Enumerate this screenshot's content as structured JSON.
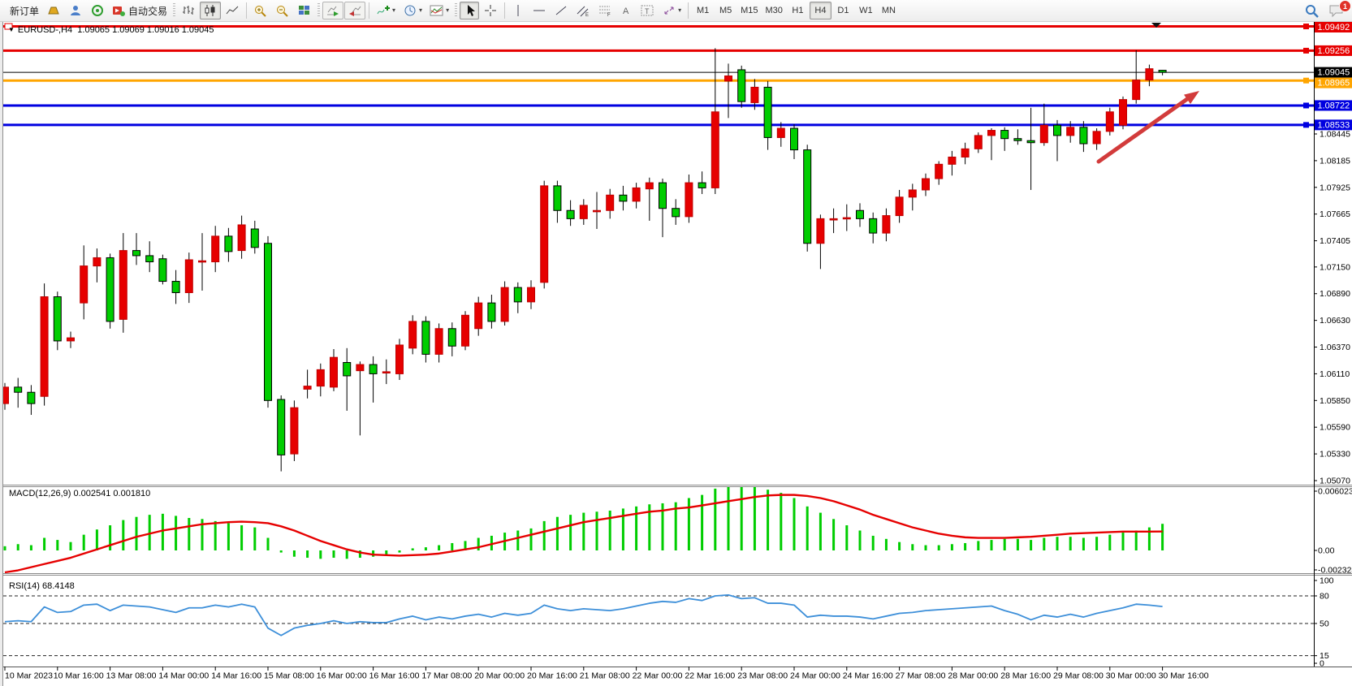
{
  "toolbar": {
    "new_order_label": "新订单",
    "auto_trading_label": "自动交易",
    "caret_glyph": "▾",
    "timeframes": [
      "M1",
      "M5",
      "M15",
      "M30",
      "H1",
      "H4",
      "D1",
      "W1",
      "MN"
    ],
    "active_timeframe": "H4",
    "notification_count": "1"
  },
  "chart": {
    "title": {
      "menu_arrow": "▼",
      "symbol_period": "EURUSD-,H4",
      "ohlc": "1.09065 1.09069 1.09016 1.09045"
    },
    "current_price": {
      "value": 1.09045,
      "label": "1.09045",
      "color": "#000000"
    },
    "hlines": [
      {
        "value": 1.09492,
        "label": "1.09492",
        "color": "#E60000"
      },
      {
        "value": 1.09256,
        "label": "1.09256",
        "color": "#E60000"
      },
      {
        "value": 1.08965,
        "label": "1.08965",
        "color": "#FFA500"
      },
      {
        "value": 1.08722,
        "label": "1.08722",
        "color": "#0000E0"
      },
      {
        "value": 1.08533,
        "label": "1.08533",
        "color": "#0000E0"
      }
    ],
    "price_scale": [
      "1.08445",
      "1.08185",
      "1.07925",
      "1.07665",
      "1.07405",
      "1.07150",
      "1.06890",
      "1.06630",
      "1.06370",
      "1.06110",
      "1.05850",
      "1.05590",
      "1.05330",
      "1.05070"
    ],
    "time_axis": [
      "10 Mar 2023",
      "10 Mar 16:00",
      "13 Mar 08:00",
      "14 Mar 00:00",
      "14 Mar 16:00",
      "15 Mar 08:00",
      "16 Mar 00:00",
      "16 Mar 16:00",
      "17 Mar 08:00",
      "20 Mar 00:00",
      "20 Mar 16:00",
      "21 Mar 08:00",
      "22 Mar 00:00",
      "22 Mar 16:00",
      "23 Mar 08:00",
      "24 Mar 00:00",
      "24 Mar 16:00",
      "27 Mar 08:00",
      "28 Mar 00:00",
      "28 Mar 16:00",
      "29 Mar 08:00",
      "30 Mar 00:00",
      "30 Mar 16:00"
    ],
    "colors": {
      "up": "#E60000",
      "down": "#00CD00",
      "wick": "#000000",
      "arrow": "#D23B3B"
    },
    "candles": [
      [
        1.0582,
        1.0602,
        1.0576,
        1.0598
      ],
      [
        1.0598,
        1.0607,
        1.0578,
        1.0593
      ],
      [
        1.0593,
        1.06,
        1.0571,
        1.0582
      ],
      [
        1.0589,
        1.0699,
        1.058,
        1.0686
      ],
      [
        1.0686,
        1.0691,
        1.0634,
        1.0643
      ],
      [
        1.0643,
        1.0652,
        1.0636,
        1.0646
      ],
      [
        1.068,
        1.0736,
        1.0664,
        1.0716
      ],
      [
        1.0716,
        1.0733,
        1.07,
        1.0724
      ],
      [
        1.0724,
        1.0728,
        1.0655,
        1.0662
      ],
      [
        1.0664,
        1.0748,
        1.0651,
        1.0731
      ],
      [
        1.0731,
        1.0748,
        1.0717,
        1.0726
      ],
      [
        1.0726,
        1.074,
        1.071,
        1.072
      ],
      [
        1.0723,
        1.0727,
        1.0698,
        1.0701
      ],
      [
        1.0701,
        1.0712,
        1.0679,
        1.069
      ],
      [
        1.069,
        1.0729,
        1.068,
        1.0722
      ],
      [
        1.0721,
        1.0748,
        1.0692,
        1.0721
      ],
      [
        1.072,
        1.0755,
        1.071,
        1.0745
      ],
      [
        1.0745,
        1.0753,
        1.072,
        1.073
      ],
      [
        1.0731,
        1.0765,
        1.0723,
        1.0756
      ],
      [
        1.0752,
        1.076,
        1.0728,
        1.0734
      ],
      [
        1.0738,
        1.0745,
        1.0578,
        1.0585
      ],
      [
        1.0586,
        1.059,
        1.0516,
        1.0532
      ],
      [
        1.0533,
        1.0585,
        1.0526,
        1.0578
      ],
      [
        1.0596,
        1.0615,
        1.0587,
        1.0599
      ],
      [
        1.0599,
        1.0621,
        1.0589,
        1.0615
      ],
      [
        1.0598,
        1.0635,
        1.0594,
        1.0627
      ],
      [
        1.0622,
        1.0636,
        1.0575,
        1.0609
      ],
      [
        1.0614,
        1.0623,
        1.0551,
        1.062
      ],
      [
        1.062,
        1.0628,
        1.0583,
        1.0611
      ],
      [
        1.0613,
        1.0625,
        1.0601,
        1.0613
      ],
      [
        1.0611,
        1.0645,
        1.0605,
        1.0639
      ],
      [
        1.0636,
        1.0668,
        1.063,
        1.0662
      ],
      [
        1.0662,
        1.0667,
        1.0622,
        1.063
      ],
      [
        1.063,
        1.066,
        1.0622,
        1.0655
      ],
      [
        1.0655,
        1.0661,
        1.0628,
        1.0638
      ],
      [
        1.0638,
        1.0672,
        1.0634,
        1.0668
      ],
      [
        1.0655,
        1.0686,
        1.0648,
        1.068
      ],
      [
        1.068,
        1.0688,
        1.0655,
        1.0662
      ],
      [
        1.0662,
        1.0701,
        1.0658,
        1.0695
      ],
      [
        1.0695,
        1.07,
        1.067,
        1.0681
      ],
      [
        1.0681,
        1.0702,
        1.0674,
        1.0695
      ],
      [
        1.07,
        1.0799,
        1.0694,
        1.0794
      ],
      [
        1.0794,
        1.0799,
        1.0758,
        1.077
      ],
      [
        1.077,
        1.078,
        1.0755,
        1.0762
      ],
      [
        1.0762,
        1.0781,
        1.0756,
        1.0775
      ],
      [
        1.077,
        1.0788,
        1.0752,
        1.077
      ],
      [
        1.077,
        1.0791,
        1.0762,
        1.0785
      ],
      [
        1.0785,
        1.0794,
        1.077,
        1.0779
      ],
      [
        1.0779,
        1.0797,
        1.0772,
        1.0792
      ],
      [
        1.0791,
        1.0802,
        1.076,
        1.0797
      ],
      [
        1.0797,
        1.0801,
        1.0744,
        1.0772
      ],
      [
        1.0772,
        1.0781,
        1.0756,
        1.0764
      ],
      [
        1.0764,
        1.0805,
        1.0758,
        1.0797
      ],
      [
        1.0797,
        1.0808,
        1.0786,
        1.0792
      ],
      [
        1.0792,
        1.0928,
        1.0786,
        1.0866
      ],
      [
        1.0896,
        1.0913,
        1.086,
        1.0901
      ],
      [
        1.0907,
        1.0911,
        1.087,
        1.0876
      ],
      [
        1.0875,
        1.0898,
        1.0868,
        1.089
      ],
      [
        1.089,
        1.0896,
        1.0829,
        1.0841
      ],
      [
        1.0841,
        1.0856,
        1.0832,
        1.085
      ],
      [
        1.085,
        1.0854,
        1.082,
        1.0829
      ],
      [
        1.0829,
        1.0834,
        1.073,
        1.0738
      ],
      [
        1.0738,
        1.0766,
        1.0713,
        1.0762
      ],
      [
        1.0762,
        1.0772,
        1.0748,
        1.0762
      ],
      [
        1.0762,
        1.0776,
        1.075,
        1.0763
      ],
      [
        1.077,
        1.0777,
        1.0754,
        1.0762
      ],
      [
        1.0762,
        1.0768,
        1.0738,
        1.0748
      ],
      [
        1.0748,
        1.0772,
        1.074,
        1.0765
      ],
      [
        1.0765,
        1.079,
        1.0758,
        1.0783
      ],
      [
        1.0783,
        1.0796,
        1.077,
        1.079
      ],
      [
        1.079,
        1.0806,
        1.0784,
        1.0801
      ],
      [
        1.0801,
        1.0818,
        1.0795,
        1.0815
      ],
      [
        1.0815,
        1.0828,
        1.0804,
        1.0822
      ],
      [
        1.0822,
        1.0836,
        1.0815,
        1.083
      ],
      [
        1.083,
        1.0846,
        1.0826,
        1.0843
      ],
      [
        1.0843,
        1.085,
        1.0819,
        1.0848
      ],
      [
        1.0848,
        1.0851,
        1.0828,
        1.084
      ],
      [
        1.084,
        1.0849,
        1.0834,
        1.0838
      ],
      [
        1.0838,
        1.087,
        1.079,
        1.0836
      ],
      [
        1.0836,
        1.0874,
        1.0833,
        1.0853
      ],
      [
        1.0853,
        1.0858,
        1.0818,
        1.0843
      ],
      [
        1.0843,
        1.0857,
        1.0836,
        1.0851
      ],
      [
        1.0851,
        1.0857,
        1.0827,
        1.0835
      ],
      [
        1.0835,
        1.085,
        1.0829,
        1.0847
      ],
      [
        1.0847,
        1.087,
        1.0843,
        1.0866
      ],
      [
        1.0853,
        1.0881,
        1.0849,
        1.0878
      ],
      [
        1.0878,
        1.0926,
        1.0874,
        1.0897
      ],
      [
        1.0897,
        1.0912,
        1.0891,
        1.0908
      ],
      [
        1.09065,
        1.09069,
        1.09016,
        1.09045
      ]
    ],
    "marker": {
      "type": "down-triangle",
      "color": "#111111"
    },
    "arrow_annotation": {
      "direction": "up-right",
      "color": "#D23B3B"
    }
  },
  "macd": {
    "label": "MACD(12,26,9) 0.002541 0.001810",
    "axis_labels": [
      "0.006023",
      "0.00",
      "-0.002324"
    ],
    "histogram_color": "#00CD00",
    "signal_color": "#E60000",
    "histogram": [
      0.0004,
      0.0006,
      0.0005,
      0.0012,
      0.001,
      0.0008,
      0.0015,
      0.002,
      0.0024,
      0.0029,
      0.0032,
      0.0034,
      0.0035,
      0.0033,
      0.0031,
      0.003,
      0.0028,
      0.0026,
      0.0024,
      0.0022,
      0.0012,
      -0.0002,
      -0.0006,
      -0.0007,
      -0.0008,
      -0.0007,
      -0.0008,
      -0.0007,
      -0.0006,
      -0.0005,
      -0.0002,
      0.0002,
      0.0003,
      0.0005,
      0.0007,
      0.0009,
      0.0012,
      0.0014,
      0.0017,
      0.0019,
      0.0021,
      0.0028,
      0.0032,
      0.0034,
      0.0036,
      0.0037,
      0.0038,
      0.004,
      0.0042,
      0.0044,
      0.0045,
      0.0046,
      0.005,
      0.0053,
      0.0059,
      0.0062,
      0.0063,
      0.0062,
      0.0058,
      0.0055,
      0.005,
      0.0042,
      0.0036,
      0.003,
      0.0024,
      0.0019,
      0.0014,
      0.0011,
      0.0008,
      0.0006,
      0.0005,
      0.0005,
      0.0006,
      0.0007,
      0.0009,
      0.001,
      0.0011,
      0.0011,
      0.001,
      0.0012,
      0.0013,
      0.0013,
      0.0012,
      0.0013,
      0.0015,
      0.0017,
      0.0019,
      0.0022,
      0.00254
    ],
    "signal": [
      -0.0021,
      -0.0019,
      -0.0016,
      -0.0013,
      -0.001,
      -0.0007,
      -0.0003,
      0.0001,
      0.0005,
      0.0009,
      0.0013,
      0.0016,
      0.0019,
      0.0021,
      0.0023,
      0.0025,
      0.0026,
      0.0027,
      0.00275,
      0.0027,
      0.0026,
      0.0023,
      0.0019,
      0.0014,
      0.0009,
      0.0005,
      0.0001,
      -0.0002,
      -0.0004,
      -0.00045,
      -0.0005,
      -0.00045,
      -0.0004,
      -0.0003,
      -0.0001,
      0.0001,
      0.0003,
      0.0006,
      0.0009,
      0.0012,
      0.0015,
      0.0018,
      0.0021,
      0.0024,
      0.0027,
      0.0029,
      0.0031,
      0.0033,
      0.0035,
      0.0037,
      0.0038,
      0.004,
      0.0041,
      0.0043,
      0.0045,
      0.0047,
      0.0049,
      0.0051,
      0.00525,
      0.0053,
      0.0053,
      0.0052,
      0.005,
      0.0047,
      0.0043,
      0.0039,
      0.0034,
      0.003,
      0.0026,
      0.0022,
      0.0019,
      0.0016,
      0.0014,
      0.00125,
      0.0012,
      0.0012,
      0.0012,
      0.00125,
      0.0013,
      0.0014,
      0.0015,
      0.0016,
      0.00165,
      0.0017,
      0.00175,
      0.0018,
      0.0018,
      0.0018,
      0.00181
    ]
  },
  "rsi": {
    "label": "RSI(14) 68.4148",
    "line_color": "#3D8FD9",
    "levels": [
      80,
      50,
      15
    ],
    "axis_labels": [
      "100",
      "80",
      "50",
      "15",
      "0"
    ],
    "values": [
      52,
      53,
      52,
      68,
      62,
      63,
      70,
      71,
      64,
      70,
      69,
      68,
      65,
      62,
      67,
      67,
      70,
      68,
      71,
      68,
      45,
      37,
      45,
      48,
      50,
      53,
      50,
      52,
      51,
      51,
      55,
      58,
      54,
      57,
      55,
      58,
      60,
      57,
      61,
      59,
      61,
      70,
      66,
      64,
      66,
      65,
      64,
      66,
      69,
      72,
      74,
      73,
      77,
      75,
      80,
      81,
      77,
      78,
      72,
      72,
      70,
      57,
      59,
      58,
      58,
      57,
      55,
      58,
      61,
      62,
      64,
      65,
      66,
      67,
      68,
      69,
      64,
      60,
      54,
      59,
      57,
      60,
      57,
      61,
      64,
      67,
      71,
      70,
      68.41
    ]
  }
}
